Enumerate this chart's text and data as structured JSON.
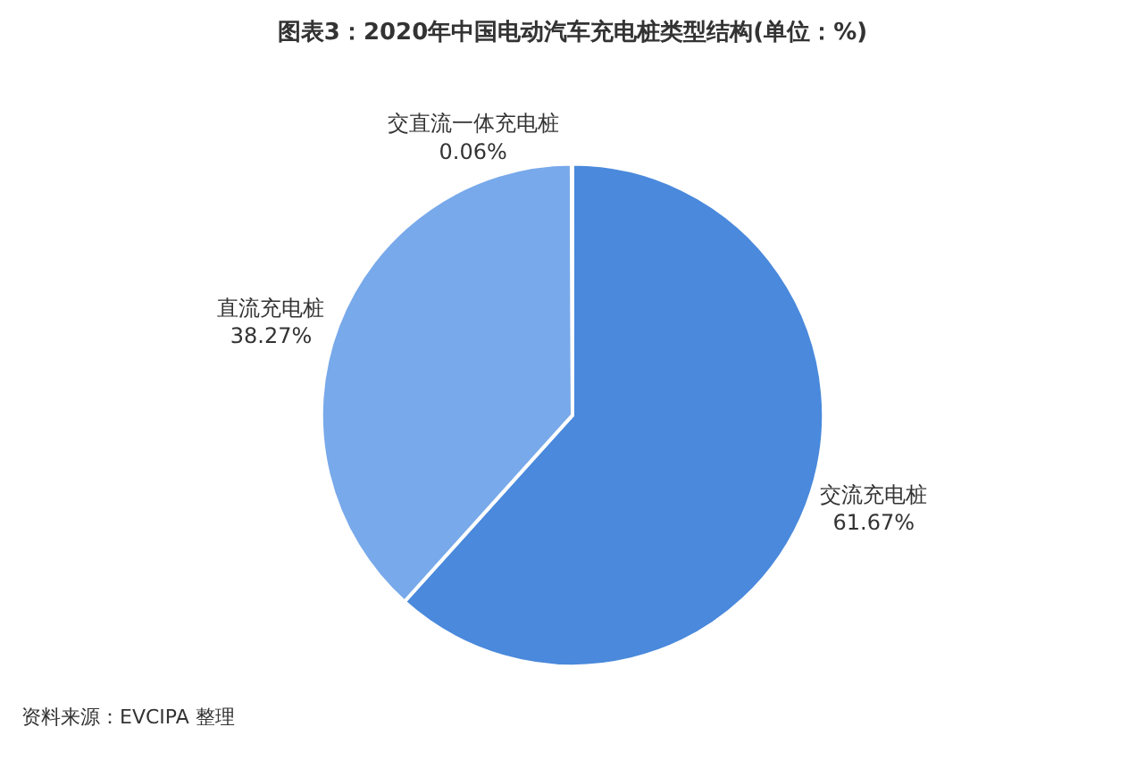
{
  "chart_data": {
    "type": "pie",
    "title": "图表3：2020年中国电动汽车充电桩类型结构(单位：%)",
    "categories": [
      "交流充电桩",
      "直流充电桩",
      "交直流一体充电桩"
    ],
    "values": [
      61.67,
      38.27,
      0.06
    ],
    "value_labels": [
      "61.67%",
      "38.27%",
      "0.06%"
    ],
    "colors": [
      "#4a89dc",
      "#78a9ea",
      "#5b9be6"
    ],
    "annotations": [
      "资料来源：EVCIPA 整理"
    ],
    "legend": false
  }
}
